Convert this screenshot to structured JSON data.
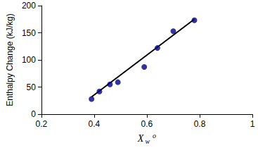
{
  "chart_data": {
    "type": "scatter",
    "ylabel": "Enthalpy Change (kJ/kg)",
    "xlabel": {
      "text": "X",
      "sub": "w",
      "sup": "o"
    },
    "series": [
      {
        "type": "scatter",
        "color": "#000080",
        "marker": "circle",
        "x": [
          0.39,
          0.42,
          0.46,
          0.49,
          0.59,
          0.64,
          0.7,
          0.78
        ],
        "values": [
          28,
          42,
          55,
          59,
          87,
          122,
          153,
          173
        ]
      },
      {
        "type": "line",
        "color": "#000000",
        "line_style": "solid",
        "x": [
          0.39,
          0.78
        ],
        "values": [
          32,
          175
        ]
      }
    ],
    "xlim": [
      0.2,
      1
    ],
    "xticks": [
      0.2,
      0.4,
      0.6,
      0.8,
      1
    ],
    "ylim": [
      0,
      200
    ],
    "yticks": [
      0,
      50,
      100,
      150,
      200
    ],
    "grid": false
  }
}
